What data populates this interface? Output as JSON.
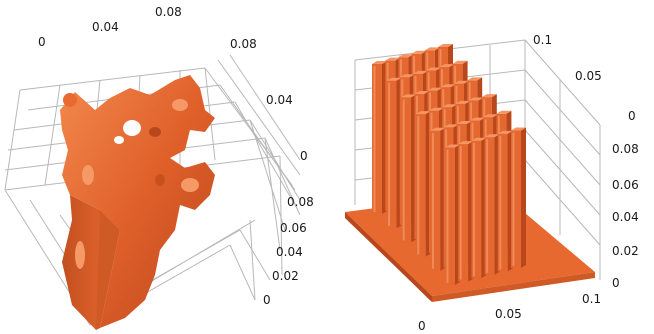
{
  "left_plot": {
    "top_axis_ticks": [
      "0",
      "0.04",
      "0.08"
    ],
    "right_axis_ticks": [
      "0.08",
      "0.04",
      "0"
    ],
    "vertical_axis_ticks": [
      "0.08",
      "0.06",
      "0.04",
      "0.02",
      "0"
    ],
    "object": "organic porous solid (topology-optimized heat sink)",
    "color": "#e2622a"
  },
  "right_plot": {
    "top_axis_ticks": [
      "0.1",
      "0.05",
      "0"
    ],
    "vertical_axis_ticks": [
      "0.08",
      "0.06",
      "0.04",
      "0.02",
      "0"
    ],
    "right_bottom_tick": "0.1",
    "bottom_axis_ticks": [
      "0",
      "0.05"
    ],
    "object": "pin-fin heat sink (6 x 6 pins on base plate)",
    "color": "#e2622a"
  },
  "colors": {
    "grid": "#b8b8b8",
    "shape": "#e2622a",
    "shape_dark": "#a8401b",
    "shape_light": "#f08a50"
  }
}
